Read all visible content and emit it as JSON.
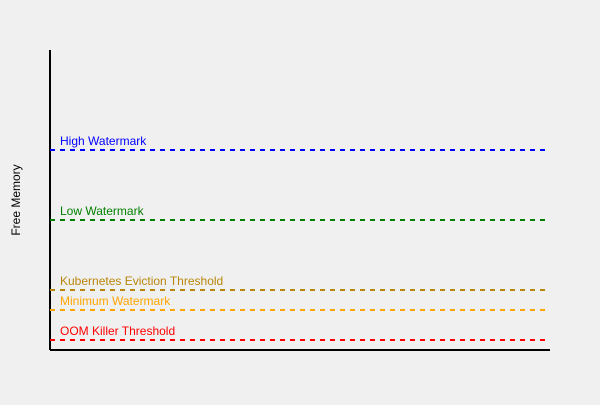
{
  "diagram": {
    "y_axis_label": "Free Memory",
    "thresholds": [
      {
        "label": "High Watermark",
        "color": "#0000FF"
      },
      {
        "label": "Low Watermark",
        "color": "#008000"
      },
      {
        "label": "Kubernetes Eviction Threshold",
        "color": "#B8860B"
      },
      {
        "label": "Minimum Watermark",
        "color": "#FFA500"
      },
      {
        "label": "OOM Killer Threshold",
        "color": "#FF0000"
      }
    ]
  }
}
